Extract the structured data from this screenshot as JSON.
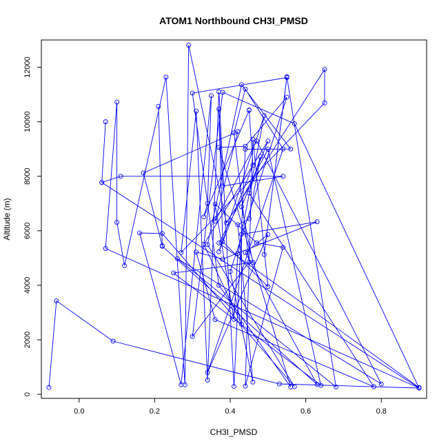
{
  "chart_data": {
    "type": "line",
    "title": "ATOM1 Northbound CH3I_PMSD",
    "xlabel": "CH3I_PMSD",
    "ylabel": "Altitude (m)",
    "xlim": [
      -0.1,
      0.92
    ],
    "ylim": [
      -150,
      13000
    ],
    "xticks": [
      "0.0",
      "0.2",
      "0.4",
      "0.6",
      "0.8"
    ],
    "yticks": [
      "0",
      "2000",
      "4000",
      "6000",
      "8000",
      "10000",
      "12000"
    ],
    "grid": false,
    "legend": "none",
    "series": [
      {
        "color": "#0000ff",
        "marker": "open-circle",
        "points": [
          [
            -0.08,
            250
          ],
          [
            -0.06,
            3430
          ],
          [
            0.09,
            1950
          ],
          [
            0.53,
            380
          ],
          [
            0.9,
            230
          ],
          [
            0.07,
            5350
          ],
          [
            0.1,
            10720
          ],
          [
            0.1,
            6310
          ],
          [
            0.12,
            4720
          ],
          [
            0.23,
            11640
          ],
          [
            0.28,
            350
          ],
          [
            0.29,
            12810
          ],
          [
            0.39,
            6290
          ],
          [
            0.65,
            11920
          ],
          [
            0.65,
            10690
          ],
          [
            0.27,
            5200
          ],
          [
            0.31,
            10390
          ],
          [
            0.34,
            520
          ],
          [
            0.37,
            11100
          ],
          [
            0.41,
            290
          ],
          [
            0.44,
            8990
          ],
          [
            0.56,
            9000
          ],
          [
            0.43,
            11360
          ],
          [
            0.34,
            5490
          ],
          [
            0.57,
            280
          ],
          [
            0.22,
            5900
          ],
          [
            0.16,
            5920
          ],
          [
            0.27,
            350
          ],
          [
            0.35,
            10960
          ],
          [
            0.34,
            7000
          ],
          [
            0.33,
            6510
          ],
          [
            0.45,
            10420
          ],
          [
            0.45,
            10430
          ],
          [
            0.46,
            8400
          ],
          [
            0.37,
            5230
          ],
          [
            0.49,
            10220
          ],
          [
            0.42,
            5170
          ],
          [
            0.41,
            2750
          ],
          [
            0.36,
            6980
          ],
          [
            0.47,
            5560
          ],
          [
            0.54,
            5390
          ],
          [
            0.44,
            300
          ],
          [
            0.46,
            9360
          ],
          [
            0.5,
            3950
          ],
          [
            0.38,
            5600
          ],
          [
            0.37,
            10460
          ],
          [
            0.38,
            7640
          ],
          [
            0.54,
            8000
          ],
          [
            0.11,
            8000
          ],
          [
            0.06,
            7770
          ],
          [
            0.07,
            10000
          ],
          [
            0.06,
            7770
          ],
          [
            0.9,
            230
          ],
          [
            0.57,
            9930
          ],
          [
            0.38,
            11080
          ],
          [
            0.3,
            2120
          ],
          [
            0.45,
            4850
          ],
          [
            0.41,
            9590
          ],
          [
            0.44,
            11200
          ],
          [
            0.54,
            9000
          ],
          [
            0.34,
            800
          ],
          [
            0.5,
            5860
          ],
          [
            0.44,
            5200
          ],
          [
            0.63,
            360
          ],
          [
            0.22,
            5430
          ],
          [
            0.21,
            10560
          ],
          [
            0.22,
            5450
          ],
          [
            0.17,
            8120
          ],
          [
            0.42,
            9640
          ],
          [
            0.36,
            6350
          ],
          [
            0.47,
            9290
          ],
          [
            0.8,
            380
          ],
          [
            0.26,
            4980
          ],
          [
            0.68,
            270
          ],
          [
            0.55,
            11650
          ],
          [
            0.49,
            5130
          ],
          [
            0.55,
            11620
          ],
          [
            0.3,
            11050
          ],
          [
            0.37,
            4000
          ],
          [
            0.56,
            270
          ],
          [
            0.37,
            9060
          ],
          [
            0.44,
            9100
          ],
          [
            0.55,
            10900
          ],
          [
            0.4,
            4500
          ],
          [
            0.46,
            450
          ],
          [
            0.42,
            6220
          ],
          [
            0.45,
            6440
          ],
          [
            0.48,
            8720
          ],
          [
            0.45,
            7380
          ],
          [
            0.78,
            280
          ],
          [
            0.36,
            2740
          ],
          [
            0.31,
            5220
          ],
          [
            0.38,
            4960
          ],
          [
            0.63,
            6330
          ],
          [
            0.43,
            5870
          ],
          [
            0.43,
            2570
          ],
          [
            0.33,
            5500
          ],
          [
            0.5,
            9290
          ],
          [
            0.43,
            6880
          ],
          [
            0.46,
            4840
          ],
          [
            0.25,
            4450
          ],
          [
            0.64,
            330
          ],
          [
            0.5,
            8990
          ],
          [
            0.37,
            5550
          ],
          [
            0.9,
            250
          ]
        ]
      }
    ]
  }
}
